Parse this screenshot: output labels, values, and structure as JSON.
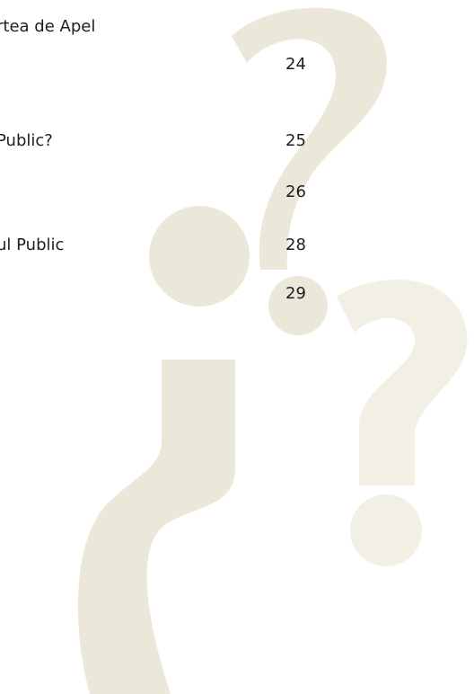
{
  "toc": {
    "entries": [
      {
        "title": "rtea de Apel",
        "page": 24
      },
      {
        "title": "Public?",
        "page": 25
      },
      {
        "page": 26
      },
      {
        "title": "ul Public",
        "page": 28
      },
      {
        "page": 29
      }
    ]
  }
}
